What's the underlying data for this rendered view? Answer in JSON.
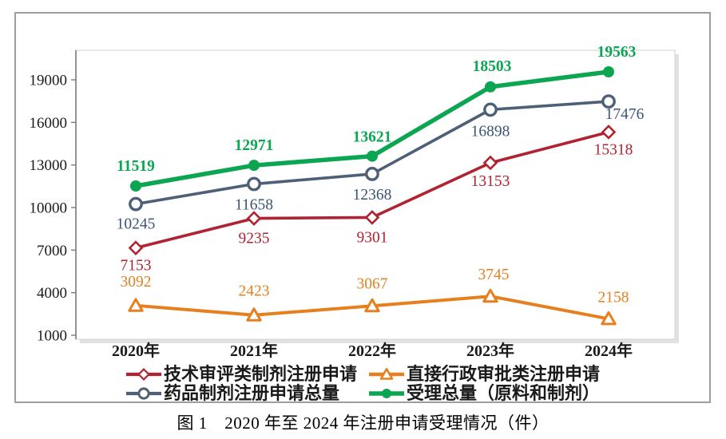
{
  "figure": {
    "caption": "图 1　2020 年至 2024 年注册申请受理情况（件）"
  },
  "chart_data": {
    "type": "line",
    "title": "",
    "xlabel": "",
    "ylabel": "",
    "categories": [
      "2020年",
      "2021年",
      "2022年",
      "2023年",
      "2024年"
    ],
    "y_ticks": [
      19000,
      16000,
      13000,
      10000,
      7000,
      4000,
      1000
    ],
    "ylim": [
      1000,
      21000
    ],
    "grid": false,
    "legend_position": "bottom",
    "axis_color": "#7a7a7a",
    "tick_label_color": "#1a1a1a",
    "panel_border_color": "#d8d8d8",
    "series": [
      {
        "key": "tech-review-formulation-applications",
        "name": "技术审评类制剂注册申请",
        "color": "#b02332",
        "label_color": "#b02332",
        "marker": "diamond-hollow",
        "line_width": 3.6,
        "label_bold": false,
        "values": [
          7153,
          9235,
          9301,
          13153,
          15318
        ],
        "label_dx": [
          0,
          0,
          0,
          0,
          6
        ],
        "label_dy": [
          28,
          31,
          31,
          29,
          28
        ]
      },
      {
        "key": "direct-admin-approval-applications",
        "name": "直接行政审批类注册申请",
        "color": "#e6801e",
        "label_color": "#e6801e",
        "marker": "triangle-hollow",
        "line_width": 4,
        "label_bold": false,
        "values": [
          3092,
          2423,
          3067,
          3745,
          2158
        ],
        "label_dx": [
          0,
          0,
          0,
          4,
          6
        ],
        "label_dy": [
          -24,
          -24,
          -22,
          -21,
          -21
        ]
      },
      {
        "key": "drug-formulation-applications-total",
        "name": "药品制剂注册申请总量",
        "color": "#4e6077",
        "label_color": "#3a5474",
        "marker": "circle-hollow",
        "line_width": 3.6,
        "label_bold": false,
        "values": [
          10245,
          11658,
          12368,
          16898,
          17476
        ],
        "label_dx": [
          0,
          0,
          0,
          0,
          20
        ],
        "label_dy": [
          31,
          32,
          32,
          33,
          22
        ]
      },
      {
        "key": "acceptance-total-api-and-formulation",
        "name": "受理总量（原料和制剂）",
        "color": "#0ca551",
        "label_color": "#0ca551",
        "marker": "circle-filled",
        "line_width": 5.5,
        "label_bold": true,
        "values": [
          11519,
          12971,
          13621,
          18503,
          19563
        ],
        "label_dx": [
          0,
          0,
          0,
          2,
          10
        ],
        "label_dy": [
          -19,
          -19,
          -18,
          -20,
          -19
        ]
      }
    ]
  }
}
